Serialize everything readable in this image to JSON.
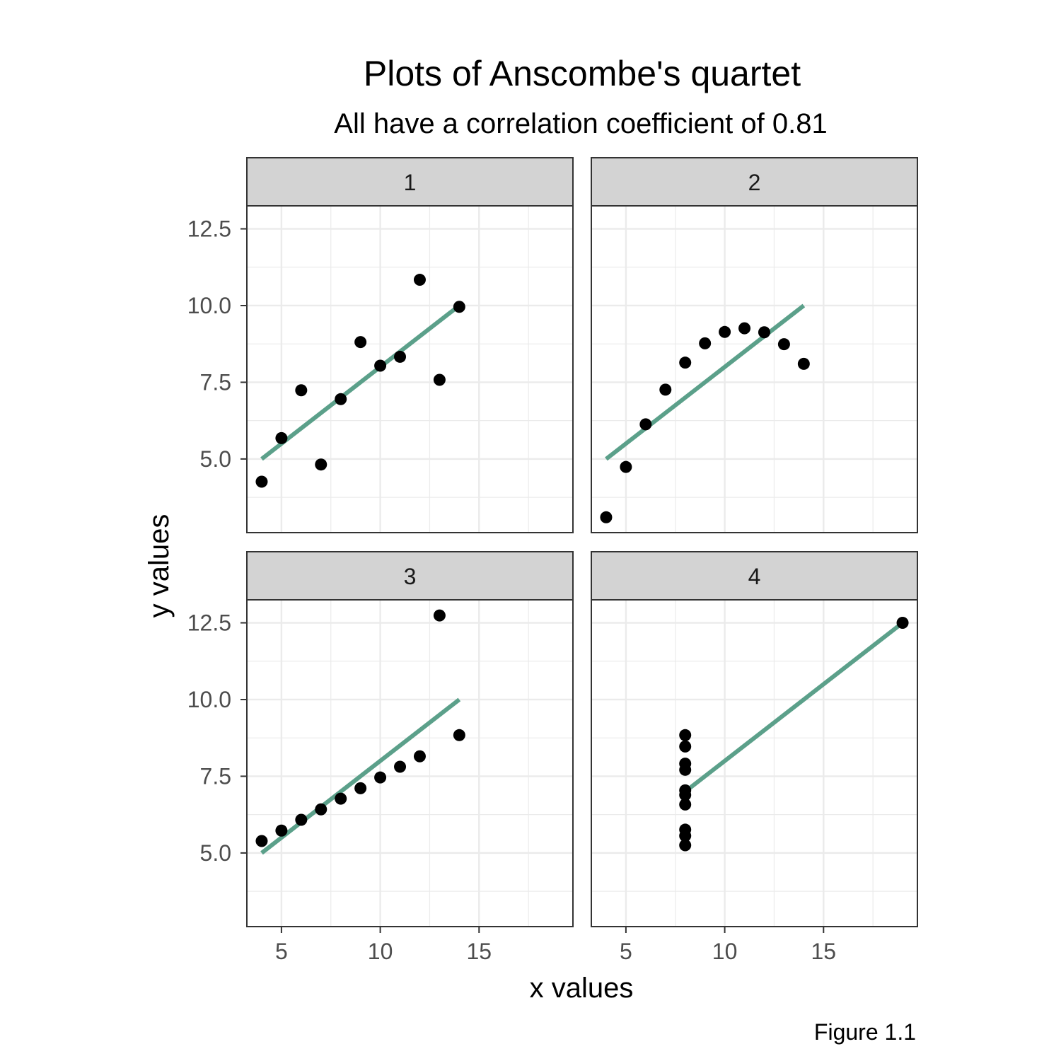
{
  "chart_data": {
    "type": "scatter",
    "title": "Plots of Anscombe's quartet",
    "subtitle": "All have a correlation coefficient of 0.81",
    "xlabel": "x values",
    "ylabel": "y values",
    "caption": "Figure 1.1",
    "xlim": [
      3.25,
      19.75
    ],
    "ylim": [
      2.6,
      13.25
    ],
    "x_ticks": [
      5,
      10,
      15
    ],
    "x_tick_labels": [
      "5",
      "10",
      "15"
    ],
    "y_ticks": [
      5.0,
      7.5,
      10.0,
      12.5
    ],
    "y_tick_labels": [
      "5.0",
      "7.5",
      "10.0",
      "12.5"
    ],
    "grid": true,
    "colors": {
      "fit_line": "#5ba08a",
      "points": "#000000",
      "strip_bg": "#d3d3d3",
      "grid": "#ebebeb",
      "panel_border": "#333333"
    },
    "panels": [
      {
        "label": "1",
        "points": [
          [
            10,
            8.04
          ],
          [
            8,
            6.95
          ],
          [
            13,
            7.58
          ],
          [
            9,
            8.81
          ],
          [
            11,
            8.33
          ],
          [
            14,
            9.96
          ],
          [
            6,
            7.24
          ],
          [
            4,
            4.26
          ],
          [
            12,
            10.84
          ],
          [
            7,
            4.82
          ],
          [
            5,
            5.68
          ]
        ],
        "fit": [
          [
            4,
            5.0
          ],
          [
            14,
            10.0
          ]
        ]
      },
      {
        "label": "2",
        "points": [
          [
            10,
            9.14
          ],
          [
            8,
            8.14
          ],
          [
            13,
            8.74
          ],
          [
            9,
            8.77
          ],
          [
            11,
            9.26
          ],
          [
            14,
            8.1
          ],
          [
            6,
            6.13
          ],
          [
            4,
            3.1
          ],
          [
            12,
            9.13
          ],
          [
            7,
            7.26
          ],
          [
            5,
            4.74
          ]
        ],
        "fit": [
          [
            4,
            5.0
          ],
          [
            14,
            10.0
          ]
        ]
      },
      {
        "label": "3",
        "points": [
          [
            10,
            7.46
          ],
          [
            8,
            6.77
          ],
          [
            13,
            12.74
          ],
          [
            9,
            7.11
          ],
          [
            11,
            7.81
          ],
          [
            14,
            8.84
          ],
          [
            6,
            6.08
          ],
          [
            4,
            5.39
          ],
          [
            12,
            8.15
          ],
          [
            7,
            6.42
          ],
          [
            5,
            5.73
          ]
        ],
        "fit": [
          [
            4,
            5.0
          ],
          [
            14,
            10.0
          ]
        ]
      },
      {
        "label": "4",
        "points": [
          [
            8,
            6.58
          ],
          [
            8,
            5.76
          ],
          [
            8,
            7.71
          ],
          [
            8,
            8.84
          ],
          [
            8,
            8.47
          ],
          [
            8,
            7.04
          ],
          [
            8,
            5.25
          ],
          [
            19,
            12.5
          ],
          [
            8,
            5.56
          ],
          [
            8,
            7.91
          ],
          [
            8,
            6.89
          ]
        ],
        "fit": [
          [
            8,
            7.0
          ],
          [
            19,
            12.5
          ]
        ]
      }
    ]
  }
}
